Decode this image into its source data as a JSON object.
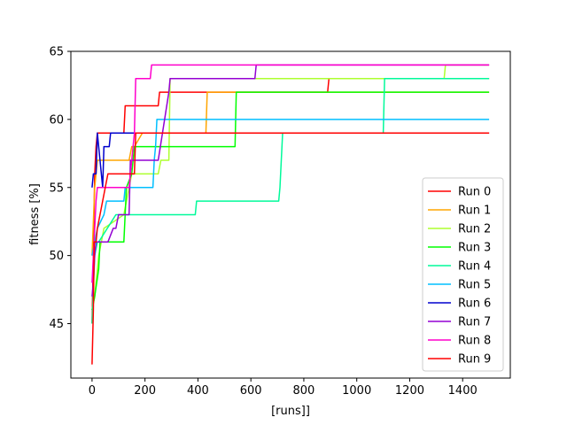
{
  "chart_data": {
    "type": "line",
    "title": "",
    "xlabel": "[runs]]",
    "ylabel": "fitness [%]",
    "xlim": [
      -80,
      1580
    ],
    "ylim": [
      41,
      65
    ],
    "xticks": [
      0,
      200,
      400,
      600,
      800,
      1000,
      1200,
      1400
    ],
    "yticks": [
      45,
      50,
      55,
      60,
      65
    ],
    "grid": false,
    "legend_position": "bottom-right",
    "series": [
      {
        "name": "Run 0",
        "color": "#ff0000",
        "x": [
          0,
          5,
          10,
          15,
          20,
          120,
          125,
          250,
          255,
          890,
          895,
          1500
        ],
        "y": [
          45,
          50,
          56,
          58,
          59,
          59,
          61,
          61,
          62,
          62,
          63,
          63
        ]
      },
      {
        "name": "Run 1",
        "color": "#ffa500",
        "x": [
          0,
          10,
          15,
          20,
          30,
          100,
          140,
          150,
          160,
          190,
          430,
          435,
          1500
        ],
        "y": [
          50,
          55,
          56,
          57,
          57,
          57,
          57,
          58,
          58,
          59,
          59,
          62,
          62
        ]
      },
      {
        "name": "Run 2",
        "color": "#adff2f",
        "x": [
          0,
          10,
          25,
          35,
          45,
          120,
          150,
          250,
          260,
          290,
          295,
          1330,
          1335,
          1500
        ],
        "y": [
          46,
          47,
          50,
          51,
          52,
          53,
          56,
          56,
          57,
          57,
          63,
          63,
          64,
          64
        ]
      },
      {
        "name": "Run 3",
        "color": "#00ff00",
        "x": [
          0,
          10,
          25,
          30,
          40,
          120,
          130,
          150,
          160,
          230,
          540,
          545,
          1500
        ],
        "y": [
          46,
          47,
          49,
          51,
          51,
          51,
          55,
          56,
          58,
          58,
          58,
          62,
          62
        ]
      },
      {
        "name": "Run 4",
        "color": "#00fa9a",
        "x": [
          0,
          10,
          20,
          25,
          90,
          95,
          390,
          395,
          705,
          710,
          720,
          725,
          1100,
          1105,
          1500
        ],
        "y": [
          45,
          50,
          51,
          51,
          53,
          53,
          53,
          54,
          54,
          55,
          59,
          59,
          59,
          63,
          63
        ]
      },
      {
        "name": "Run 5",
        "color": "#00bfff",
        "x": [
          0,
          10,
          20,
          45,
          55,
          120,
          125,
          230,
          235,
          240,
          245,
          1100,
          1105,
          1500
        ],
        "y": [
          50,
          51,
          52,
          53,
          54,
          54,
          55,
          55,
          57,
          58,
          60,
          60,
          60,
          60
        ]
      },
      {
        "name": "Run 6",
        "color": "#0000cd",
        "x": [
          0,
          5,
          10,
          15,
          20,
          40,
          45,
          55,
          65,
          70,
          1500
        ],
        "y": [
          55,
          56,
          56,
          56,
          59,
          55,
          58,
          58,
          58,
          59,
          59
        ]
      },
      {
        "name": "Run 7",
        "color": "#9400d3",
        "x": [
          0,
          5,
          10,
          15,
          60,
          80,
          90,
          100,
          140,
          145,
          250,
          290,
          295,
          300,
          615,
          620,
          1500
        ],
        "y": [
          47,
          48,
          50,
          51,
          51,
          52,
          52,
          53,
          53,
          57,
          57,
          62,
          63,
          63,
          63,
          64,
          64
        ]
      },
      {
        "name": "Run 8",
        "color": "#ff00cc",
        "x": [
          0,
          5,
          10,
          15,
          20,
          140,
          160,
          165,
          220,
          225,
          1500
        ],
        "y": [
          48,
          50,
          52,
          54,
          55,
          55,
          59,
          63,
          63,
          64,
          64
        ]
      },
      {
        "name": "Run 9",
        "color": "#ff0000",
        "x": [
          0,
          5,
          8,
          15,
          20,
          60,
          120,
          160,
          165,
          1500
        ],
        "y": [
          42,
          46,
          51,
          51,
          52,
          56,
          56,
          56,
          59,
          59
        ]
      }
    ]
  }
}
